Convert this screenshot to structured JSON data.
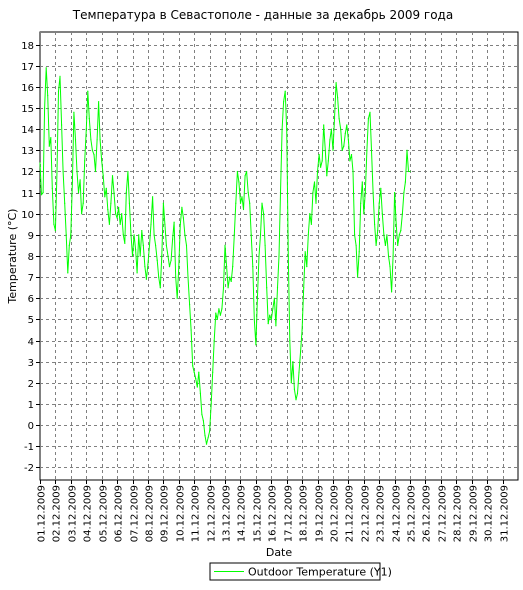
{
  "chart_data": {
    "type": "line",
    "title": "Температура в Севастополе - данные за декабрь 2009 года",
    "xlabel": "Date",
    "ylabel": "Temperature (°C)",
    "ylim": [
      -2.6,
      18.6
    ],
    "y_ticks": [
      -2,
      -1,
      0,
      1,
      2,
      3,
      4,
      5,
      6,
      7,
      8,
      9,
      10,
      11,
      12,
      13,
      14,
      15,
      16,
      17,
      18
    ],
    "xlim": [
      1,
      32
    ],
    "x_ticks": [
      "01.12.2009",
      "02.12.2009",
      "03.12.2009",
      "04.12.2009",
      "05.12.2009",
      "06.12.2009",
      "07.12.2009",
      "08.12.2009",
      "09.12.2009",
      "10.12.2009",
      "11.12.2009",
      "12.12.2009",
      "13.12.2009",
      "14.12.2009",
      "15.12.2009",
      "16.12.2009",
      "17.12.2009",
      "18.12.2009",
      "19.12.2009",
      "20.12.2009",
      "21.12.2009",
      "22.12.2009",
      "23.12.2009",
      "24.12.2009",
      "25.12.2009",
      "26.12.2009",
      "27.12.2009",
      "28.12.2009",
      "29.12.2009",
      "30.12.2009",
      "31.12.2009"
    ],
    "grid": true,
    "legend_position": "bottom-center",
    "series": [
      {
        "name": "Outdoor Temperature (Y1)",
        "color": "#00ff00",
        "points": [
          [
            1.0,
            12.4
          ],
          [
            1.1,
            10.9
          ],
          [
            1.2,
            11.0
          ],
          [
            1.3,
            15.0
          ],
          [
            1.4,
            16.9
          ],
          [
            1.5,
            15.6
          ],
          [
            1.6,
            13.2
          ],
          [
            1.7,
            13.6
          ],
          [
            1.8,
            11.2
          ],
          [
            1.9,
            9.5
          ],
          [
            2.0,
            9.2
          ],
          [
            2.1,
            12.0
          ],
          [
            2.2,
            15.8
          ],
          [
            2.3,
            16.5
          ],
          [
            2.4,
            14.2
          ],
          [
            2.5,
            12.0
          ],
          [
            2.6,
            10.5
          ],
          [
            2.7,
            9.0
          ],
          [
            2.8,
            7.2
          ],
          [
            2.9,
            8.5
          ],
          [
            3.0,
            9.0
          ],
          [
            3.1,
            11.5
          ],
          [
            3.2,
            14.8
          ],
          [
            3.3,
            13.5
          ],
          [
            3.4,
            12.0
          ],
          [
            3.5,
            11.0
          ],
          [
            3.6,
            11.6
          ],
          [
            3.7,
            10.0
          ],
          [
            3.8,
            10.5
          ],
          [
            3.9,
            12.5
          ],
          [
            4.0,
            14.0
          ],
          [
            4.1,
            15.8
          ],
          [
            4.2,
            14.5
          ],
          [
            4.3,
            13.5
          ],
          [
            4.4,
            13.0
          ],
          [
            4.5,
            12.8
          ],
          [
            4.6,
            12.0
          ],
          [
            4.7,
            13.5
          ],
          [
            4.8,
            15.3
          ],
          [
            4.9,
            13.5
          ],
          [
            5.0,
            12.5
          ],
          [
            5.1,
            11.8
          ],
          [
            5.2,
            10.8
          ],
          [
            5.3,
            11.2
          ],
          [
            5.4,
            10.2
          ],
          [
            5.5,
            9.5
          ],
          [
            5.6,
            10.5
          ],
          [
            5.7,
            11.8
          ],
          [
            5.8,
            11.0
          ],
          [
            5.9,
            10.0
          ],
          [
            6.0,
            9.8
          ],
          [
            6.1,
            10.3
          ],
          [
            6.2,
            9.5
          ],
          [
            6.3,
            10.0
          ],
          [
            6.4,
            9.0
          ],
          [
            6.5,
            8.6
          ],
          [
            6.6,
            11.0
          ],
          [
            6.7,
            12.0
          ],
          [
            6.8,
            10.5
          ],
          [
            6.9,
            9.0
          ],
          [
            7.0,
            8.0
          ],
          [
            7.1,
            9.0
          ],
          [
            7.2,
            8.3
          ],
          [
            7.3,
            7.2
          ],
          [
            7.4,
            9.0
          ],
          [
            7.5,
            8.0
          ],
          [
            7.6,
            9.2
          ],
          [
            7.7,
            8.5
          ],
          [
            7.8,
            7.5
          ],
          [
            7.9,
            6.9
          ],
          [
            8.0,
            7.6
          ],
          [
            8.1,
            8.5
          ],
          [
            8.2,
            9.5
          ],
          [
            8.3,
            10.8
          ],
          [
            8.4,
            9.0
          ],
          [
            8.5,
            8.5
          ],
          [
            8.6,
            7.8
          ],
          [
            8.7,
            7.0
          ],
          [
            8.8,
            6.5
          ],
          [
            8.9,
            8.0
          ],
          [
            9.0,
            10.5
          ],
          [
            9.1,
            9.5
          ],
          [
            9.2,
            8.5
          ],
          [
            9.3,
            8.0
          ],
          [
            9.4,
            7.5
          ],
          [
            9.5,
            7.8
          ],
          [
            9.6,
            8.8
          ],
          [
            9.7,
            9.6
          ],
          [
            9.8,
            7.0
          ],
          [
            9.9,
            6.0
          ],
          [
            10.0,
            7.5
          ],
          [
            10.1,
            9.5
          ],
          [
            10.2,
            10.3
          ],
          [
            10.3,
            9.8
          ],
          [
            10.4,
            9.0
          ],
          [
            10.5,
            8.5
          ],
          [
            10.6,
            7.0
          ],
          [
            10.7,
            5.7
          ],
          [
            10.8,
            4.5
          ],
          [
            10.9,
            2.8
          ],
          [
            11.0,
            2.5
          ],
          [
            11.1,
            2.2
          ],
          [
            11.2,
            1.8
          ],
          [
            11.3,
            2.5
          ],
          [
            11.4,
            1.5
          ],
          [
            11.5,
            0.5
          ],
          [
            11.6,
            0.2
          ],
          [
            11.7,
            -0.5
          ],
          [
            11.8,
            -0.9
          ],
          [
            11.9,
            -0.6
          ],
          [
            12.0,
            -0.3
          ],
          [
            12.1,
            1.0
          ],
          [
            12.2,
            2.5
          ],
          [
            12.3,
            4.0
          ],
          [
            12.4,
            5.3
          ],
          [
            12.5,
            5.0
          ],
          [
            12.6,
            5.5
          ],
          [
            12.7,
            5.2
          ],
          [
            12.8,
            5.5
          ],
          [
            12.9,
            6.5
          ],
          [
            13.0,
            8.5
          ],
          [
            13.1,
            7.5
          ],
          [
            13.2,
            6.5
          ],
          [
            13.3,
            7.0
          ],
          [
            13.4,
            6.8
          ],
          [
            13.5,
            7.5
          ],
          [
            13.6,
            9.0
          ],
          [
            13.7,
            10.5
          ],
          [
            13.8,
            12.0
          ],
          [
            13.9,
            11.5
          ],
          [
            14.0,
            10.5
          ],
          [
            14.1,
            10.8
          ],
          [
            14.2,
            10.2
          ],
          [
            14.3,
            11.8
          ],
          [
            14.4,
            12.0
          ],
          [
            14.5,
            11.0
          ],
          [
            14.6,
            10.5
          ],
          [
            14.7,
            9.0
          ],
          [
            14.8,
            7.5
          ],
          [
            14.9,
            5.0
          ],
          [
            15.0,
            3.8
          ],
          [
            15.1,
            6.0
          ],
          [
            15.2,
            8.0
          ],
          [
            15.3,
            9.0
          ],
          [
            15.4,
            10.5
          ],
          [
            15.5,
            10.0
          ],
          [
            15.6,
            8.5
          ],
          [
            15.7,
            6.5
          ],
          [
            15.8,
            4.8
          ],
          [
            15.9,
            5.2
          ],
          [
            16.0,
            5.0
          ],
          [
            16.1,
            5.5
          ],
          [
            16.2,
            6.0
          ],
          [
            16.3,
            4.7
          ],
          [
            16.4,
            6.5
          ],
          [
            16.5,
            8.0
          ],
          [
            16.6,
            11.0
          ],
          [
            16.7,
            14.0
          ],
          [
            16.8,
            15.3
          ],
          [
            16.9,
            15.8
          ],
          [
            17.0,
            14.0
          ],
          [
            17.1,
            8.0
          ],
          [
            17.2,
            4.0
          ],
          [
            17.3,
            2.0
          ],
          [
            17.4,
            3.0
          ],
          [
            17.5,
            1.7
          ],
          [
            17.6,
            1.2
          ],
          [
            17.7,
            1.5
          ],
          [
            17.8,
            2.5
          ],
          [
            17.9,
            3.5
          ],
          [
            18.0,
            4.5
          ],
          [
            18.1,
            6.5
          ],
          [
            18.2,
            8.2
          ],
          [
            18.3,
            7.5
          ],
          [
            18.4,
            9.0
          ],
          [
            18.5,
            10.0
          ],
          [
            18.6,
            9.5
          ],
          [
            18.7,
            11.0
          ],
          [
            18.8,
            11.5
          ],
          [
            18.9,
            10.5
          ],
          [
            19.0,
            12.0
          ],
          [
            19.1,
            12.8
          ],
          [
            19.2,
            12.2
          ],
          [
            19.3,
            12.5
          ],
          [
            19.4,
            14.2
          ],
          [
            19.5,
            13.0
          ],
          [
            19.6,
            11.8
          ],
          [
            19.7,
            12.5
          ],
          [
            19.8,
            13.5
          ],
          [
            19.9,
            14.0
          ],
          [
            20.0,
            13.0
          ],
          [
            20.1,
            14.5
          ],
          [
            20.2,
            16.2
          ],
          [
            20.3,
            15.5
          ],
          [
            20.4,
            14.5
          ],
          [
            20.5,
            14.0
          ],
          [
            20.6,
            13.0
          ],
          [
            20.7,
            13.2
          ],
          [
            20.8,
            13.8
          ],
          [
            20.9,
            14.2
          ],
          [
            21.0,
            13.5
          ],
          [
            21.1,
            12.5
          ],
          [
            21.2,
            12.8
          ],
          [
            21.3,
            12.0
          ],
          [
            21.4,
            9.0
          ],
          [
            21.5,
            8.5
          ],
          [
            21.6,
            7.0
          ],
          [
            21.7,
            8.2
          ],
          [
            21.8,
            10.5
          ],
          [
            21.9,
            11.5
          ],
          [
            22.0,
            10.0
          ],
          [
            22.1,
            11.0
          ],
          [
            22.2,
            13.0
          ],
          [
            22.3,
            14.5
          ],
          [
            22.4,
            14.8
          ],
          [
            22.5,
            13.0
          ],
          [
            22.6,
            11.0
          ],
          [
            22.7,
            9.5
          ],
          [
            22.8,
            8.5
          ],
          [
            22.9,
            9.2
          ],
          [
            23.0,
            10.5
          ],
          [
            23.1,
            11.2
          ],
          [
            23.2,
            10.0
          ],
          [
            23.3,
            9.0
          ],
          [
            23.4,
            8.5
          ],
          [
            23.5,
            9.0
          ],
          [
            23.6,
            8.0
          ],
          [
            23.7,
            7.5
          ],
          [
            23.8,
            6.3
          ],
          [
            23.9,
            8.0
          ],
          [
            24.0,
            11.0
          ],
          [
            24.1,
            9.5
          ],
          [
            24.2,
            8.5
          ],
          [
            24.3,
            9.0
          ],
          [
            24.4,
            9.2
          ],
          [
            24.5,
            10.0
          ],
          [
            24.6,
            11.0
          ],
          [
            24.7,
            11.5
          ],
          [
            24.8,
            13.0
          ],
          [
            24.9,
            12.0
          ],
          [
            25.0,
            12.0
          ]
        ]
      }
    ]
  }
}
